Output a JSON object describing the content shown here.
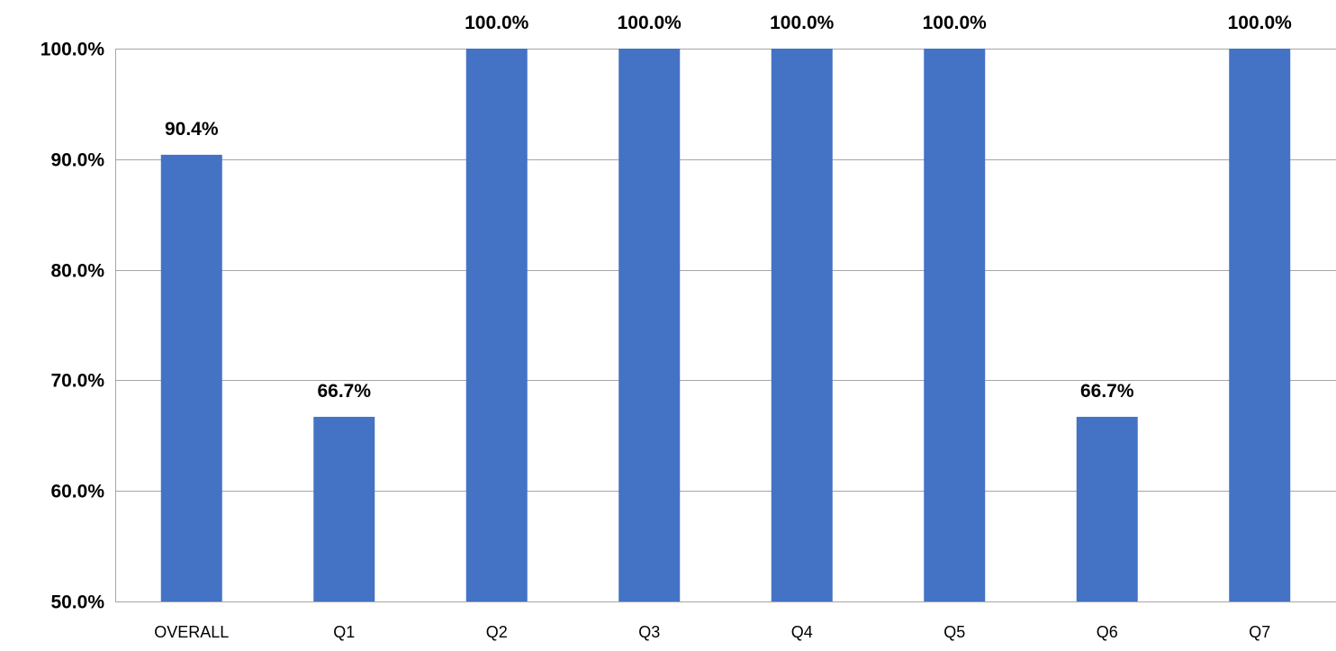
{
  "chart_data": {
    "type": "bar",
    "title": "",
    "xlabel": "",
    "ylabel": "",
    "categories": [
      "OVERALL",
      "Q1",
      "Q2",
      "Q3",
      "Q4",
      "Q5",
      "Q6",
      "Q7"
    ],
    "series": [
      {
        "values": [
          90.4,
          66.7,
          100.0,
          100.0,
          100.0,
          100.0,
          66.7,
          100.0
        ],
        "color": "#4472c4"
      }
    ],
    "data_labels": [
      "90.4%",
      "66.7%",
      "100.0%",
      "100.0%",
      "100.0%",
      "100.0%",
      "66.7%",
      "100.0%"
    ],
    "ylim": [
      50,
      100
    ],
    "yticks": [
      50,
      60,
      70,
      80,
      90,
      100
    ],
    "ytick_labels": [
      "50.0%",
      "60.0%",
      "70.0%",
      "80.0%",
      "90.0%",
      "100.0%"
    ],
    "grid": true,
    "legend": "none",
    "gridline_color": "#a6a6a6"
  }
}
